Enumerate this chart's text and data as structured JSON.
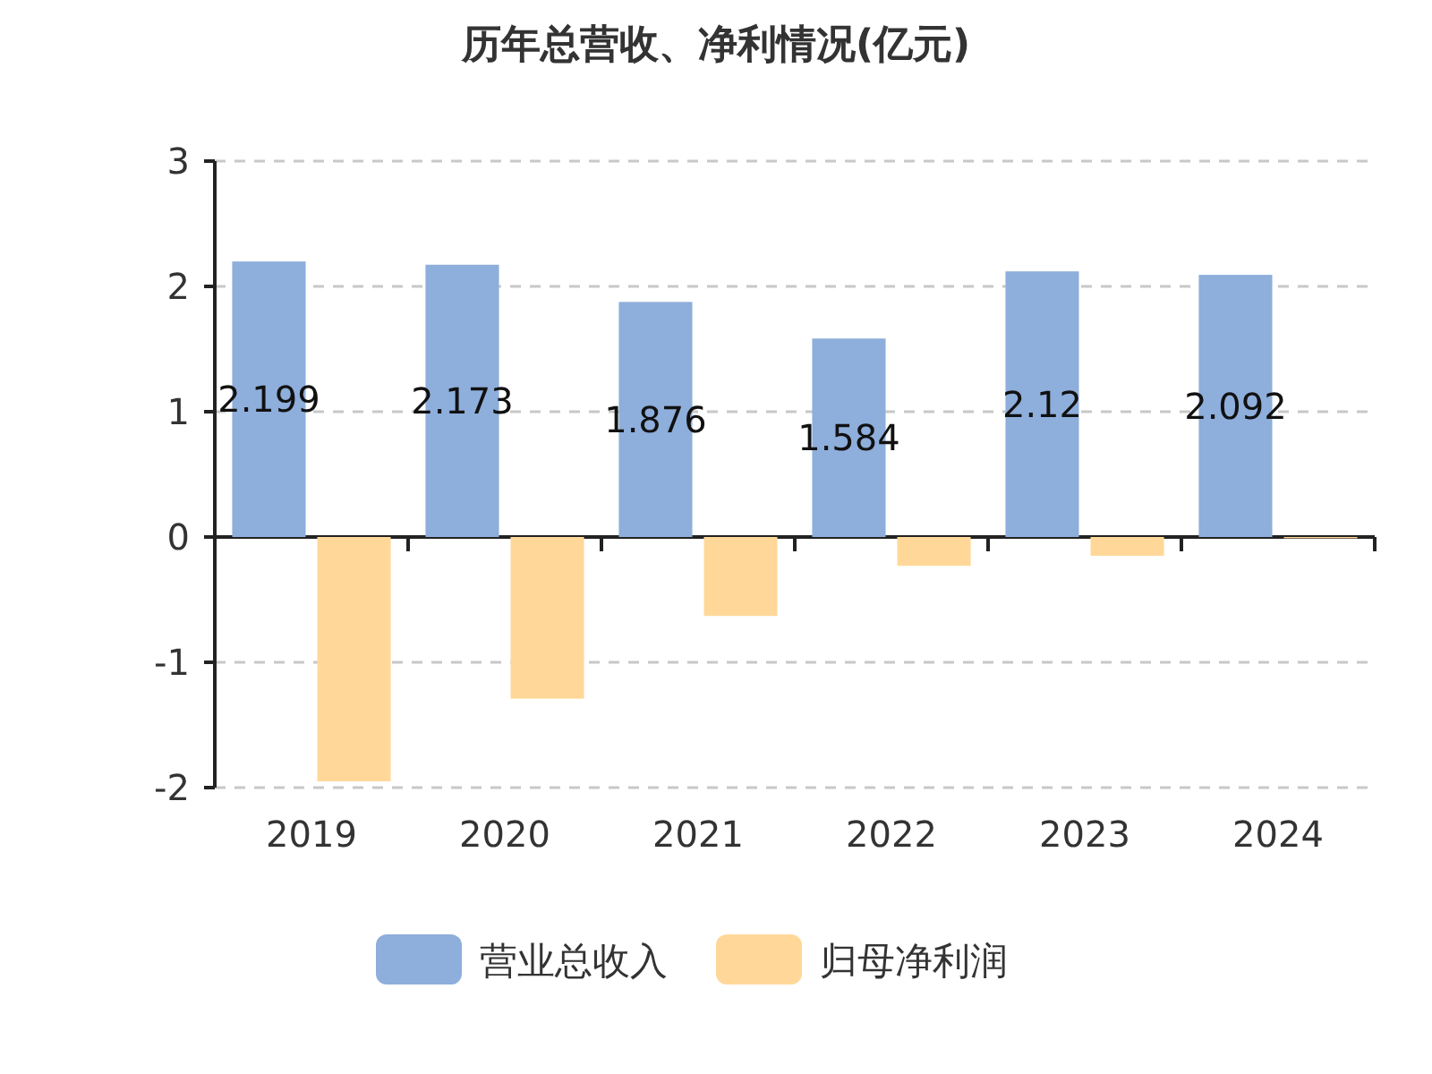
{
  "chart_data": {
    "type": "bar",
    "title": "历年总营收、净利情况(亿元)",
    "categories": [
      "2019",
      "2020",
      "2021",
      "2022",
      "2023",
      "2024"
    ],
    "series": [
      {
        "name": "营业总收入",
        "color": "#8eaedb",
        "values": [
          2.199,
          2.173,
          1.876,
          1.584,
          2.12,
          2.092
        ],
        "value_labels": [
          "2.199",
          "2.173",
          "1.876",
          "1.584",
          "2.12",
          "2.092"
        ]
      },
      {
        "name": "归母净利润",
        "color": "#ffd899",
        "values": [
          -1.95,
          -1.29,
          -0.63,
          -0.23,
          -0.15,
          -0.01
        ]
      }
    ],
    "ylim": [
      -2,
      3
    ],
    "yticks": [
      -2,
      -1,
      0,
      1,
      2,
      3
    ],
    "grid": "y",
    "legend": "bottom"
  }
}
